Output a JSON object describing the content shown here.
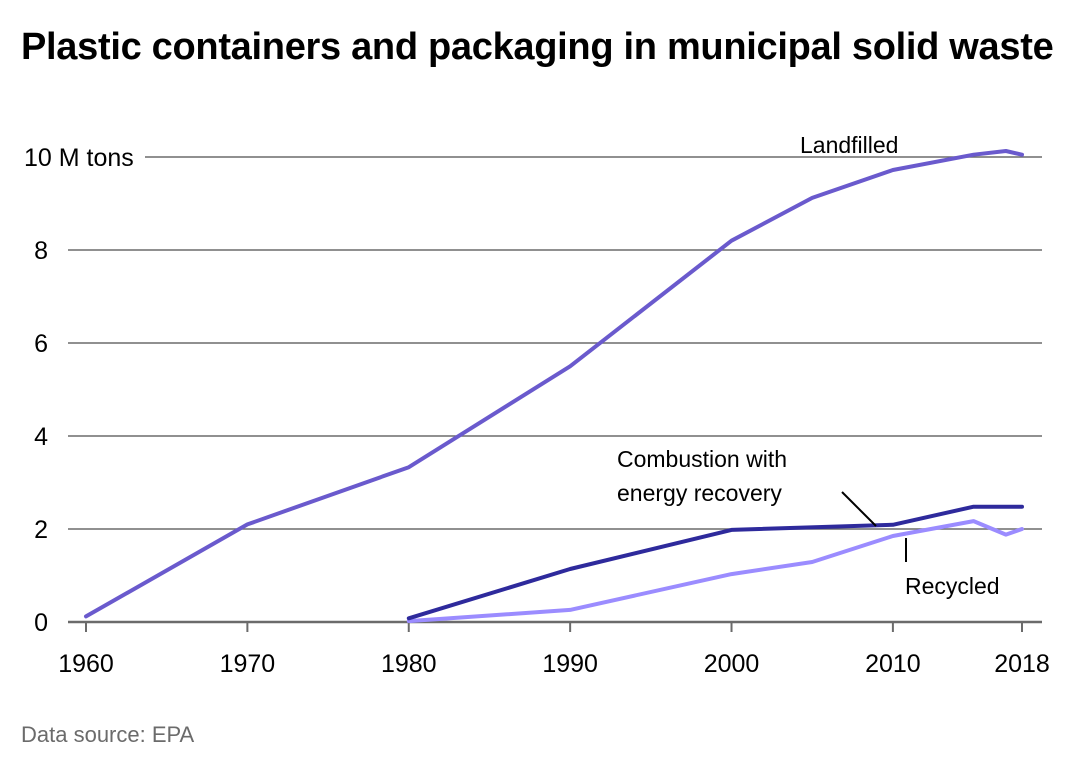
{
  "chart_data": {
    "type": "line",
    "title": "Plastic containers and packaging in municipal solid waste",
    "source": "Data source: EPA",
    "xlabel": "",
    "ylabel": "M tons",
    "xlim": [
      1960,
      2018
    ],
    "ylim": [
      0,
      10
    ],
    "grid": true,
    "x_ticks": [
      {
        "value": 1960,
        "label": "1960"
      },
      {
        "value": 1970,
        "label": "1970"
      },
      {
        "value": 1980,
        "label": "1980"
      },
      {
        "value": 1990,
        "label": "1990"
      },
      {
        "value": 2000,
        "label": "2000"
      },
      {
        "value": 2010,
        "label": "2010"
      },
      {
        "value": 2018,
        "label": "2018"
      }
    ],
    "y_ticks": [
      {
        "value": 0,
        "label": "0"
      },
      {
        "value": 2,
        "label": "2"
      },
      {
        "value": 4,
        "label": "4"
      },
      {
        "value": 6,
        "label": "6"
      },
      {
        "value": 8,
        "label": "8"
      },
      {
        "value": 10,
        "label": "10 M tons"
      }
    ],
    "series": [
      {
        "name": "Landfilled",
        "label": "Landfilled",
        "color": "#6a5acd",
        "x": [
          1960,
          1970,
          1980,
          1990,
          2000,
          2005,
          2010,
          2015,
          2017,
          2018
        ],
        "values": [
          0.12,
          2.1,
          3.33,
          5.5,
          8.2,
          9.12,
          9.72,
          10.05,
          10.13,
          10.05
        ]
      },
      {
        "name": "Combustion with energy recovery",
        "label_lines": [
          "Combustion with",
          "energy recovery"
        ],
        "color": "#2e2a9c",
        "x": [
          1980,
          1990,
          2000,
          2010,
          2015,
          2018
        ],
        "values": [
          0.08,
          1.14,
          1.98,
          2.09,
          2.48,
          2.48
        ]
      },
      {
        "name": "Recycled",
        "label": "Recycled",
        "color": "#9b8cff",
        "x": [
          1980,
          1990,
          2000,
          2005,
          2010,
          2015,
          2017,
          2018
        ],
        "values": [
          0.02,
          0.26,
          1.03,
          1.29,
          1.85,
          2.17,
          1.88,
          2.0
        ]
      }
    ],
    "colors": {
      "gridline": "#6b6b6b",
      "axis": "#6b6b6b",
      "source_text": "#6b6b6b"
    }
  }
}
